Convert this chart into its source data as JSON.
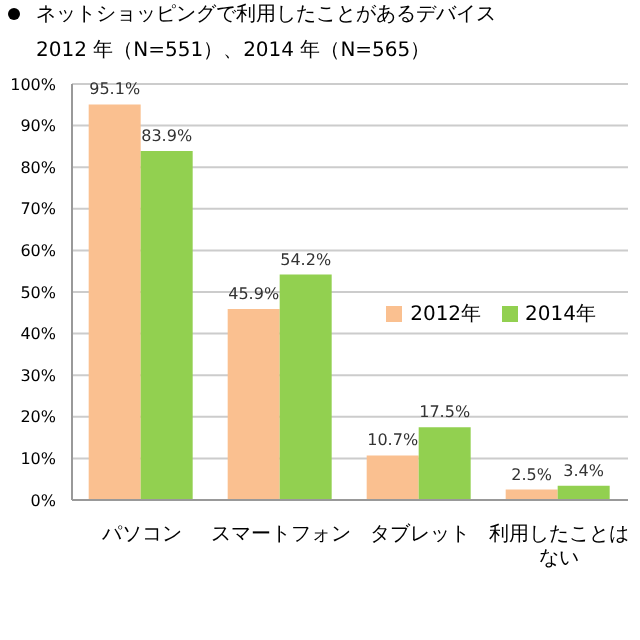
{
  "chart_data": {
    "type": "bar",
    "title": "ネットショッピングで利用したことがあるデバイス",
    "subtitle": "2012 年（N=551）、2014 年（N=565）",
    "categories": [
      "パソコン",
      "スマートフォン",
      "タブレット",
      "利用したことはない"
    ],
    "series": [
      {
        "name": "2012年",
        "color": "#fac090",
        "values": [
          95.1,
          45.9,
          10.7,
          2.5
        ],
        "value_labels": [
          "95.1%",
          "45.9%",
          "10.7%",
          "2.5%"
        ]
      },
      {
        "name": "2014年",
        "color": "#92d050",
        "values": [
          83.9,
          54.2,
          17.5,
          3.4
        ],
        "value_labels": [
          "83.9%",
          "54.2%",
          "17.5%",
          "3.4%"
        ]
      }
    ],
    "ylim": [
      0,
      100
    ],
    "yticks": [
      {
        "value": 0,
        "label": "0%"
      },
      {
        "value": 10,
        "label": "10%"
      },
      {
        "value": 20,
        "label": "20%"
      },
      {
        "value": 30,
        "label": "30%"
      },
      {
        "value": 40,
        "label": "40%"
      },
      {
        "value": 50,
        "label": "50%"
      },
      {
        "value": 60,
        "label": "60%"
      },
      {
        "value": 70,
        "label": "70%"
      },
      {
        "value": 80,
        "label": "80%"
      },
      {
        "value": 90,
        "label": "90%"
      },
      {
        "value": 100,
        "label": "100%"
      }
    ],
    "grid": "y",
    "legend": "right"
  }
}
